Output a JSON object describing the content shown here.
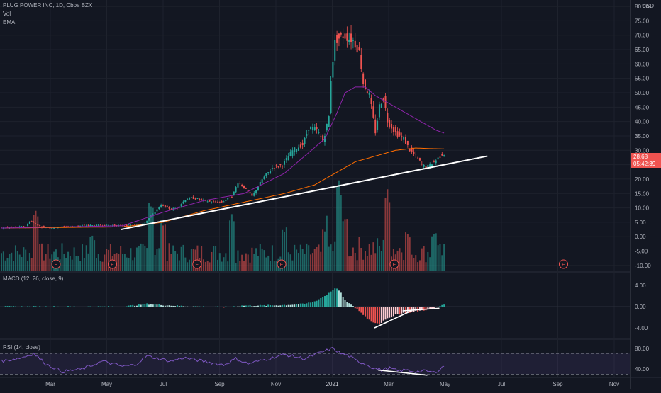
{
  "header": {
    "symbol_title": "PLUG POWER INC, 1D, Cboe BZX",
    "vol_label": "Vol",
    "ema_label": "EMA",
    "currency": "USD"
  },
  "price_tag": {
    "value": "28.68",
    "countdown": "05:42:39"
  },
  "panels": {
    "macd_title": "MACD (12, 26, close, 9)",
    "rsi_title": "RSI (14, close)"
  },
  "earnings_marker": "E",
  "colors": {
    "background": "#131722",
    "up": "#26a69a",
    "down": "#ef5350",
    "ema": "#8e24aa",
    "sma": "#ff6d00",
    "rsi": "#7e57c2",
    "price_tag": "#ef5350"
  },
  "chart_data": [
    {
      "type": "candlestick",
      "panel": "price",
      "ylim": [
        -12,
        81
      ],
      "y_ticks": [
        "-10.00",
        "-5.00",
        "0.00",
        "5.00",
        "10.00",
        "15.00",
        "20.00",
        "25.00",
        "30.00",
        "35.00",
        "40.00",
        "45.00",
        "50.00",
        "55.00",
        "60.00",
        "65.00",
        "70.00",
        "75.00",
        "80.00"
      ],
      "x_ticks": [
        "Mar",
        "May",
        "Jul",
        "Sep",
        "Nov",
        "2021",
        "Mar",
        "May",
        "Jul",
        "Sep",
        "Nov"
      ],
      "last_price": 28.68,
      "price_anchors": [
        [
          0,
          3
        ],
        [
          13,
          3.5
        ],
        [
          15,
          5.5
        ],
        [
          17,
          4.8
        ],
        [
          20,
          3.6
        ],
        [
          25,
          3
        ],
        [
          30,
          3.4
        ],
        [
          40,
          3.8
        ],
        [
          50,
          4
        ],
        [
          60,
          3.8
        ],
        [
          68,
          4
        ],
        [
          72,
          5
        ],
        [
          76,
          8
        ],
        [
          80,
          11
        ],
        [
          85,
          9.5
        ],
        [
          88,
          10
        ],
        [
          92,
          13
        ],
        [
          95,
          13.5
        ],
        [
          100,
          12.8
        ],
        [
          105,
          12
        ],
        [
          110,
          12
        ],
        [
          115,
          14
        ],
        [
          118,
          19
        ],
        [
          121,
          17
        ],
        [
          125,
          14
        ],
        [
          130,
          20
        ],
        [
          135,
          24
        ],
        [
          140,
          25
        ],
        [
          145,
          30
        ],
        [
          150,
          32
        ],
        [
          153,
          38
        ],
        [
          157,
          37
        ],
        [
          160,
          33
        ],
        [
          163,
          42
        ],
        [
          164,
          56
        ],
        [
          166,
          68
        ],
        [
          170,
          70
        ],
        [
          175,
          68
        ],
        [
          178,
          64
        ],
        [
          180,
          53
        ],
        [
          183,
          49
        ],
        [
          186,
          36
        ],
        [
          188,
          46
        ],
        [
          190,
          48
        ],
        [
          192,
          40
        ],
        [
          194,
          38
        ],
        [
          196,
          36
        ],
        [
          200,
          34
        ],
        [
          203,
          30
        ],
        [
          206,
          28
        ],
        [
          209,
          25
        ],
        [
          211,
          24
        ],
        [
          215,
          26
        ],
        [
          219,
          28.7
        ]
      ],
      "ema_anchors": [
        [
          0,
          3
        ],
        [
          60,
          3.8
        ],
        [
          80,
          8.5
        ],
        [
          100,
          12.5
        ],
        [
          120,
          15
        ],
        [
          140,
          22
        ],
        [
          150,
          28
        ],
        [
          160,
          34
        ],
        [
          166,
          43
        ],
        [
          170,
          50
        ],
        [
          175,
          52
        ],
        [
          180,
          52
        ],
        [
          185,
          49
        ],
        [
          190,
          47
        ],
        [
          195,
          45
        ],
        [
          200,
          43
        ],
        [
          205,
          41
        ],
        [
          210,
          39
        ],
        [
          215,
          37
        ],
        [
          219,
          36
        ]
      ],
      "sma_anchors": [
        [
          0,
          3
        ],
        [
          60,
          3.4
        ],
        [
          80,
          5
        ],
        [
          100,
          9
        ],
        [
          120,
          12
        ],
        [
          140,
          15
        ],
        [
          155,
          18
        ],
        [
          165,
          22
        ],
        [
          175,
          26
        ],
        [
          185,
          28
        ],
        [
          195,
          30
        ],
        [
          205,
          30.8
        ],
        [
          212,
          30.6
        ],
        [
          219,
          30.5
        ]
      ],
      "trendlines": [
        {
          "from": [
            "2020-05",
            2.5
          ],
          "to": [
            "2021-06",
            28
          ]
        }
      ],
      "volume_spikes": [
        [
          17,
          0.9
        ],
        [
          45,
          0.5
        ],
        [
          74,
          1
        ],
        [
          80,
          0.7
        ],
        [
          114,
          0.8
        ],
        [
          140,
          0.6
        ],
        [
          160,
          0.6
        ],
        [
          167,
          1
        ],
        [
          170,
          0.6
        ],
        [
          191,
          0.9
        ],
        [
          201,
          0.55
        ],
        [
          214,
          0.55
        ]
      ],
      "earnings_markers": [
        "2020-03",
        "2020-05",
        "2020-08",
        "2020-11",
        "2021-03",
        "2021-09"
      ]
    },
    {
      "type": "histogram",
      "panel": "macd",
      "ylim": [
        -6,
        6
      ],
      "y_ticks": [
        "4.00",
        "0.00",
        "-4.00"
      ],
      "macd_anchors": [
        [
          0,
          0
        ],
        [
          60,
          0
        ],
        [
          72,
          0.5
        ],
        [
          80,
          0.3
        ],
        [
          90,
          0.1
        ],
        [
          100,
          0
        ],
        [
          110,
          -0.1
        ],
        [
          120,
          0.2
        ],
        [
          130,
          0.2
        ],
        [
          140,
          0.3
        ],
        [
          150,
          0.5
        ],
        [
          155,
          1
        ],
        [
          160,
          2
        ],
        [
          164,
          3.2
        ],
        [
          166,
          3.5
        ],
        [
          168,
          2.5
        ],
        [
          170,
          1.2
        ],
        [
          173,
          0.3
        ],
        [
          176,
          -0.5
        ],
        [
          179,
          -1.5
        ],
        [
          183,
          -2.8
        ],
        [
          187,
          -3.2
        ],
        [
          190,
          -2.5
        ],
        [
          195,
          -1.5
        ],
        [
          200,
          -1.2
        ],
        [
          205,
          -0.9
        ],
        [
          210,
          -0.6
        ],
        [
          215,
          -0.2
        ],
        [
          219,
          0.5
        ]
      ],
      "trendlines": [
        {
          "from": [
            "2021-03",
            -4
          ],
          "to": [
            "2021-04",
            -0.8
          ]
        },
        {
          "from": [
            "2021-04",
            -0.8
          ],
          "to": [
            "2021-05",
            -0.3
          ]
        }
      ]
    },
    {
      "type": "line",
      "panel": "rsi",
      "ylim": [
        25,
        95
      ],
      "y_ticks": [
        "80.00",
        "40.00"
      ],
      "band": [
        30,
        70
      ],
      "rsi_anchors": [
        [
          0,
          55
        ],
        [
          10,
          62
        ],
        [
          16,
          70
        ],
        [
          22,
          50
        ],
        [
          30,
          35
        ],
        [
          40,
          40
        ],
        [
          50,
          55
        ],
        [
          60,
          45
        ],
        [
          66,
          48
        ],
        [
          72,
          65
        ],
        [
          78,
          60
        ],
        [
          84,
          55
        ],
        [
          90,
          62
        ],
        [
          100,
          55
        ],
        [
          110,
          48
        ],
        [
          116,
          60
        ],
        [
          122,
          50
        ],
        [
          130,
          58
        ],
        [
          140,
          68
        ],
        [
          150,
          60
        ],
        [
          158,
          72
        ],
        [
          164,
          80
        ],
        [
          168,
          70
        ],
        [
          172,
          65
        ],
        [
          176,
          55
        ],
        [
          180,
          50
        ],
        [
          184,
          42
        ],
        [
          188,
          38
        ],
        [
          192,
          42
        ],
        [
          196,
          36
        ],
        [
          200,
          38
        ],
        [
          205,
          35
        ],
        [
          210,
          36
        ],
        [
          214,
          33
        ],
        [
          217,
          40
        ],
        [
          219,
          46
        ]
      ],
      "trendlines": [
        {
          "from": [
            "2021-03",
            38
          ],
          "to": [
            "2021-05",
            28
          ]
        }
      ]
    }
  ]
}
